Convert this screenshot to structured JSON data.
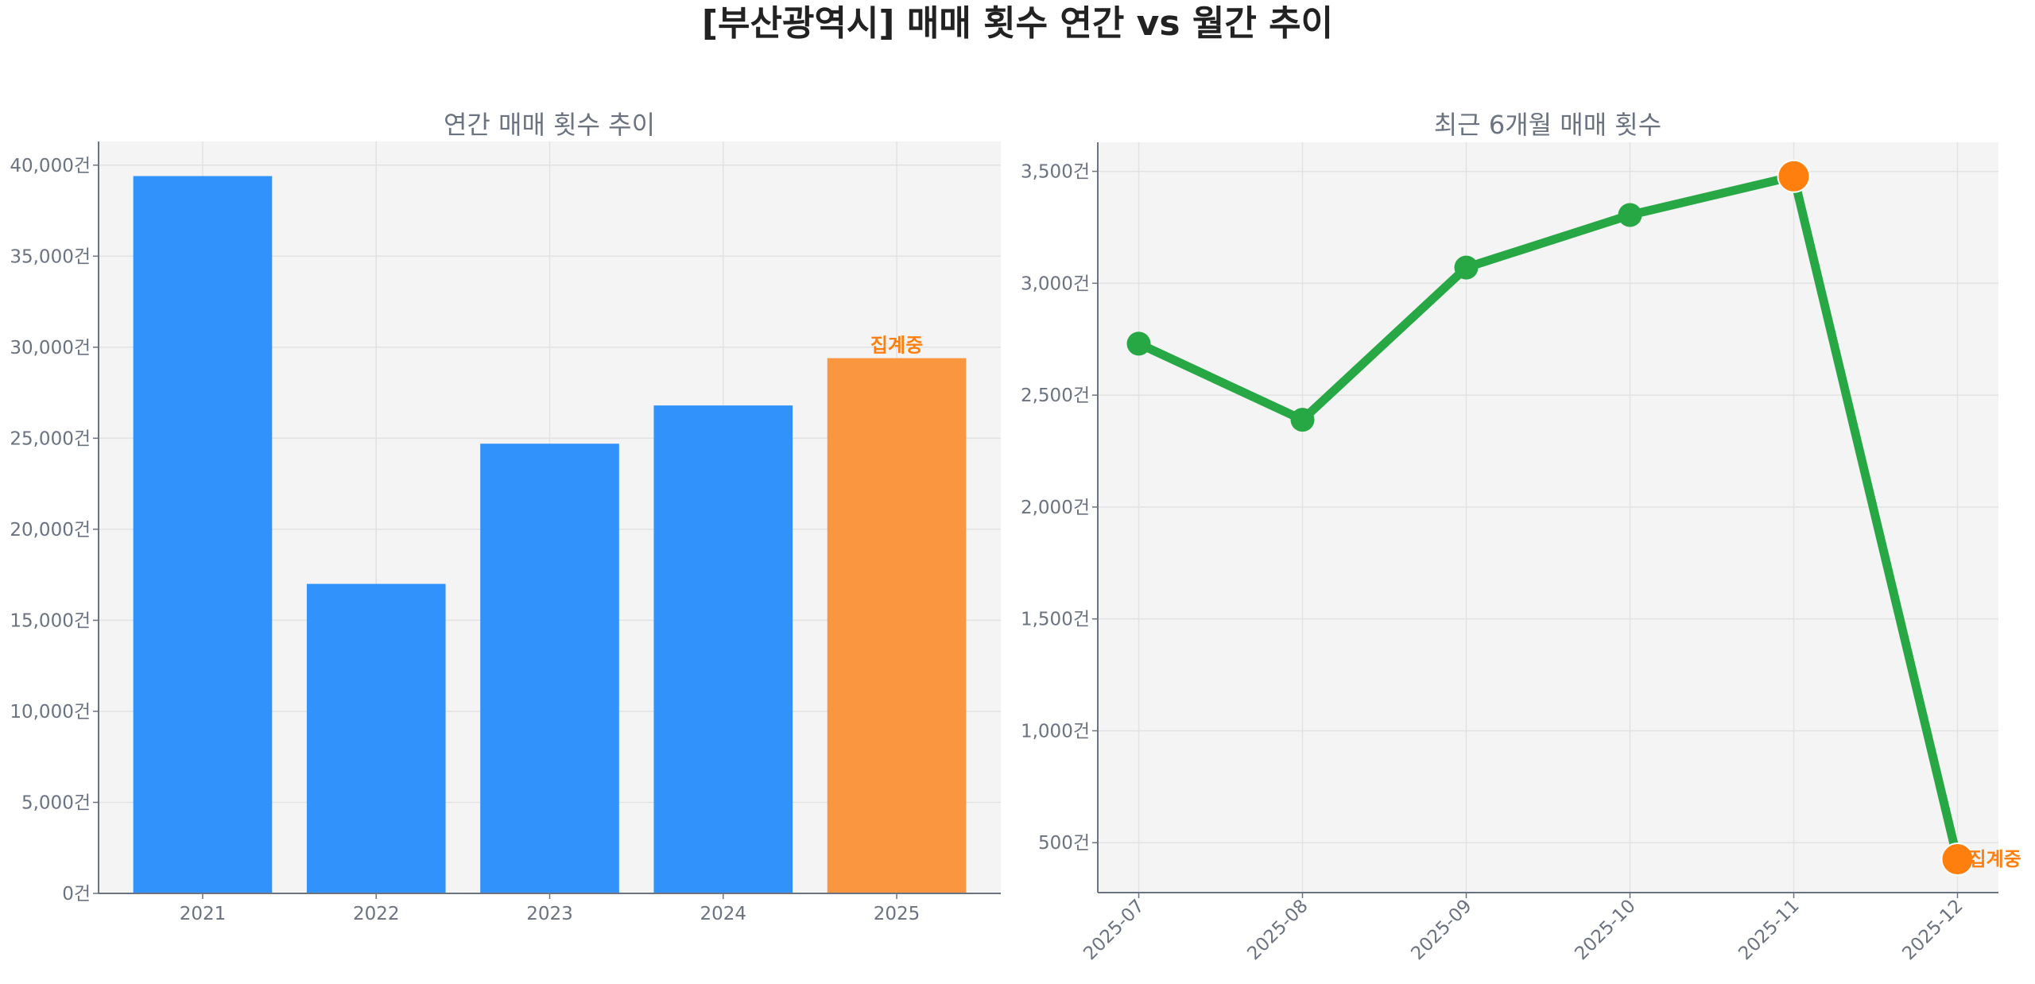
{
  "title": "[부산광역시] 매매 횟수 연간 vs 월간 추이",
  "chart_data": [
    {
      "type": "bar",
      "title": "연간 매매 횟수 추이",
      "categories": [
        "2021",
        "2022",
        "2023",
        "2024",
        "2025"
      ],
      "values": [
        39400,
        17000,
        24700,
        26800,
        29400
      ],
      "bar_colors": [
        "#3192fb",
        "#3192fb",
        "#3192fb",
        "#3192fb",
        "#f9963f"
      ],
      "annotations": [
        {
          "category": "2025",
          "text": "집계중",
          "color": "#ff7f0e"
        }
      ],
      "ylim": [
        0,
        41300
      ],
      "yticks": [
        0,
        5000,
        10000,
        15000,
        20000,
        25000,
        30000,
        35000,
        40000
      ],
      "ytick_labels": [
        "0건",
        "5,000건",
        "10,000건",
        "15,000건",
        "20,000건",
        "25,000건",
        "30,000건",
        "35,000건",
        "40,000건"
      ],
      "xlabel": "",
      "ylabel": "",
      "grid": true
    },
    {
      "type": "line",
      "title": "최근 6개월 매매 횟수",
      "categories": [
        "2025-07",
        "2025-08",
        "2025-09",
        "2025-10",
        "2025-11",
        "2025-12"
      ],
      "values": [
        2730,
        2390,
        3070,
        3305,
        3478,
        426
      ],
      "line_color": "#28a745",
      "highlight_color": "#ff7f0e",
      "highlighted": [
        "2025-11",
        "2025-12"
      ],
      "annotations": [
        {
          "category": "2025-12",
          "text": "집계중",
          "color": "#ff7f0e"
        }
      ],
      "ylim": [
        277,
        3630
      ],
      "yticks": [
        500,
        1000,
        1500,
        2000,
        2500,
        3000,
        3500
      ],
      "ytick_labels": [
        "500건",
        "1,000건",
        "1,500건",
        "2,000건",
        "2,500건",
        "3,000건",
        "3,500건"
      ],
      "xlabel": "",
      "ylabel": "",
      "grid": true
    }
  ]
}
